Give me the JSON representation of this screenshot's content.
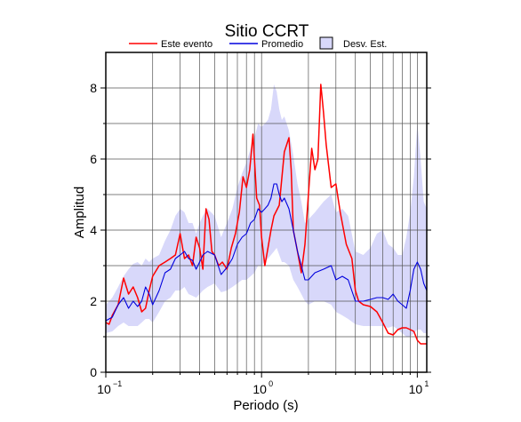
{
  "chart_data": {
    "type": "line",
    "title": "Sitio CCRT",
    "xlabel": "Periodo (s)",
    "ylabel": "Amplitud",
    "x_scale": "log",
    "xlim": [
      0.1,
      11.5
    ],
    "ylim": [
      0,
      9
    ],
    "grid": true,
    "legend_position": "top",
    "x_tick_labels": [
      {
        "value": 0.1,
        "base": "10",
        "exp": "−1"
      },
      {
        "value": 1,
        "base": "10",
        "exp": "0"
      },
      {
        "value": 10,
        "base": "10",
        "exp": "1"
      }
    ],
    "y_ticks": [
      0,
      2,
      4,
      6,
      8
    ],
    "legend": {
      "event": "Este evento",
      "mean": "Promedio",
      "std": "Desv. Est."
    },
    "colors": {
      "event": "#ff0000",
      "mean": "#0000dd",
      "band": "#d8d8fa"
    },
    "series": [
      {
        "name": "Este evento",
        "x": [
          0.1,
          0.105,
          0.11,
          0.12,
          0.13,
          0.14,
          0.15,
          0.16,
          0.17,
          0.18,
          0.19,
          0.2,
          0.22,
          0.24,
          0.26,
          0.28,
          0.3,
          0.32,
          0.34,
          0.36,
          0.38,
          0.4,
          0.42,
          0.44,
          0.46,
          0.48,
          0.5,
          0.53,
          0.56,
          0.6,
          0.64,
          0.68,
          0.72,
          0.76,
          0.8,
          0.84,
          0.88,
          0.9,
          0.93,
          0.97,
          1.0,
          1.05,
          1.1,
          1.15,
          1.2,
          1.3,
          1.4,
          1.5,
          1.55,
          1.6,
          1.7,
          1.8,
          1.9,
          2.0,
          2.1,
          2.2,
          2.3,
          2.4,
          2.45,
          2.5,
          2.6,
          2.8,
          3.0,
          3.2,
          3.5,
          3.8,
          4.0,
          4.2,
          4.5,
          5.0,
          5.5,
          6.0,
          6.5,
          7.0,
          7.5,
          8.0,
          8.5,
          9.0,
          9.5,
          10.0,
          10.5,
          11.5
        ],
        "values": [
          1.4,
          1.35,
          1.6,
          1.9,
          2.65,
          2.2,
          2.4,
          2.1,
          1.7,
          1.8,
          2.3,
          2.7,
          3.0,
          3.1,
          3.2,
          3.3,
          3.9,
          3.2,
          3.3,
          3.0,
          3.8,
          3.5,
          2.9,
          4.6,
          4.3,
          3.4,
          3.3,
          3.0,
          3.1,
          2.9,
          3.5,
          3.9,
          4.5,
          5.5,
          5.2,
          5.7,
          6.7,
          6.0,
          4.9,
          4.7,
          3.8,
          3.0,
          3.5,
          4.0,
          4.4,
          4.7,
          6.2,
          6.6,
          5.7,
          4.0,
          3.4,
          2.8,
          3.6,
          5.0,
          6.3,
          5.7,
          6.0,
          8.1,
          7.7,
          7.3,
          6.4,
          5.2,
          5.3,
          4.5,
          3.6,
          3.2,
          2.3,
          2.0,
          1.9,
          1.85,
          1.7,
          1.4,
          1.1,
          1.05,
          1.2,
          1.25,
          1.25,
          1.2,
          1.15,
          0.9,
          0.8,
          0.8
        ]
      },
      {
        "name": "Promedio",
        "x": [
          0.1,
          0.11,
          0.12,
          0.13,
          0.14,
          0.15,
          0.16,
          0.17,
          0.18,
          0.19,
          0.2,
          0.22,
          0.24,
          0.26,
          0.28,
          0.3,
          0.32,
          0.34,
          0.36,
          0.38,
          0.4,
          0.42,
          0.45,
          0.5,
          0.55,
          0.6,
          0.65,
          0.7,
          0.75,
          0.8,
          0.85,
          0.9,
          0.95,
          1.0,
          1.05,
          1.1,
          1.15,
          1.2,
          1.25,
          1.3,
          1.35,
          1.4,
          1.5,
          1.6,
          1.7,
          1.8,
          1.9,
          2.0,
          2.2,
          2.5,
          2.8,
          3.0,
          3.3,
          3.6,
          4.0,
          4.5,
          5.0,
          5.5,
          6.0,
          6.5,
          7.0,
          7.5,
          8.0,
          8.5,
          9.0,
          9.5,
          10.0,
          10.5,
          11.0,
          11.5
        ],
        "values": [
          1.45,
          1.55,
          1.9,
          2.1,
          1.8,
          2.0,
          1.85,
          2.0,
          2.4,
          2.2,
          1.9,
          2.3,
          2.8,
          2.9,
          3.2,
          3.3,
          3.4,
          3.2,
          3.15,
          2.9,
          3.1,
          3.3,
          3.4,
          3.3,
          2.75,
          2.95,
          3.2,
          3.6,
          3.8,
          3.9,
          4.2,
          4.3,
          4.6,
          4.5,
          4.6,
          4.7,
          4.9,
          5.3,
          5.3,
          5.0,
          4.8,
          4.9,
          4.6,
          4.0,
          3.4,
          3.0,
          2.6,
          2.6,
          2.8,
          2.9,
          3.0,
          2.6,
          2.7,
          2.6,
          2.0,
          2.0,
          2.05,
          2.1,
          2.1,
          2.05,
          2.2,
          2.0,
          1.9,
          1.8,
          2.3,
          2.9,
          3.1,
          2.9,
          2.5,
          2.3
        ]
      },
      {
        "name": "Desv. Est.",
        "x": [
          0.1,
          0.11,
          0.12,
          0.13,
          0.14,
          0.15,
          0.16,
          0.17,
          0.18,
          0.19,
          0.2,
          0.22,
          0.24,
          0.26,
          0.28,
          0.3,
          0.32,
          0.34,
          0.36,
          0.38,
          0.4,
          0.42,
          0.45,
          0.5,
          0.55,
          0.6,
          0.65,
          0.7,
          0.75,
          0.8,
          0.85,
          0.9,
          0.95,
          1.0,
          1.05,
          1.1,
          1.15,
          1.2,
          1.25,
          1.3,
          1.35,
          1.4,
          1.5,
          1.6,
          1.7,
          1.8,
          1.9,
          2.0,
          2.2,
          2.5,
          2.8,
          3.0,
          3.3,
          3.6,
          4.0,
          4.5,
          5.0,
          5.5,
          6.0,
          6.5,
          7.0,
          7.5,
          8.0,
          8.5,
          9.0,
          9.5,
          10.0,
          10.5,
          11.0,
          11.5
        ],
        "upper": [
          1.9,
          2.1,
          2.4,
          2.7,
          2.9,
          3.05,
          3.1,
          3.0,
          3.2,
          3.1,
          3.2,
          3.3,
          3.7,
          4.0,
          4.4,
          4.6,
          4.5,
          4.2,
          4.2,
          3.9,
          4.2,
          4.4,
          4.6,
          4.4,
          3.8,
          4.2,
          4.6,
          5.2,
          5.6,
          5.9,
          6.3,
          6.6,
          7.0,
          6.9,
          7.0,
          7.1,
          7.4,
          8.1,
          7.9,
          7.4,
          7.1,
          7.2,
          6.8,
          6.1,
          5.3,
          4.8,
          4.2,
          4.3,
          4.5,
          4.8,
          5.0,
          4.5,
          4.6,
          4.4,
          3.4,
          3.3,
          3.5,
          3.9,
          4.0,
          3.6,
          3.5,
          3.3,
          3.3,
          3.8,
          4.5,
          5.5,
          7.0,
          6.0,
          4.8,
          4.6
        ],
        "lower": [
          1.1,
          1.15,
          1.3,
          1.4,
          1.3,
          1.3,
          1.3,
          1.4,
          1.5,
          1.5,
          1.4,
          1.7,
          2.0,
          2.1,
          2.3,
          2.3,
          2.4,
          2.2,
          2.15,
          2.1,
          2.2,
          2.3,
          2.4,
          2.5,
          2.25,
          2.3,
          2.4,
          2.5,
          2.6,
          2.6,
          2.7,
          2.8,
          3.0,
          3.0,
          3.1,
          3.2,
          3.3,
          3.4,
          3.5,
          3.3,
          3.1,
          3.1,
          3.0,
          2.6,
          2.4,
          2.2,
          2.0,
          1.9,
          2.0,
          2.0,
          1.9,
          1.7,
          1.6,
          1.5,
          1.35,
          1.3,
          1.3,
          1.3,
          1.3,
          1.25,
          1.3,
          1.2,
          1.1,
          1.0,
          1.0,
          1.1,
          1.2,
          1.2,
          1.1,
          1.1
        ]
      }
    ]
  }
}
